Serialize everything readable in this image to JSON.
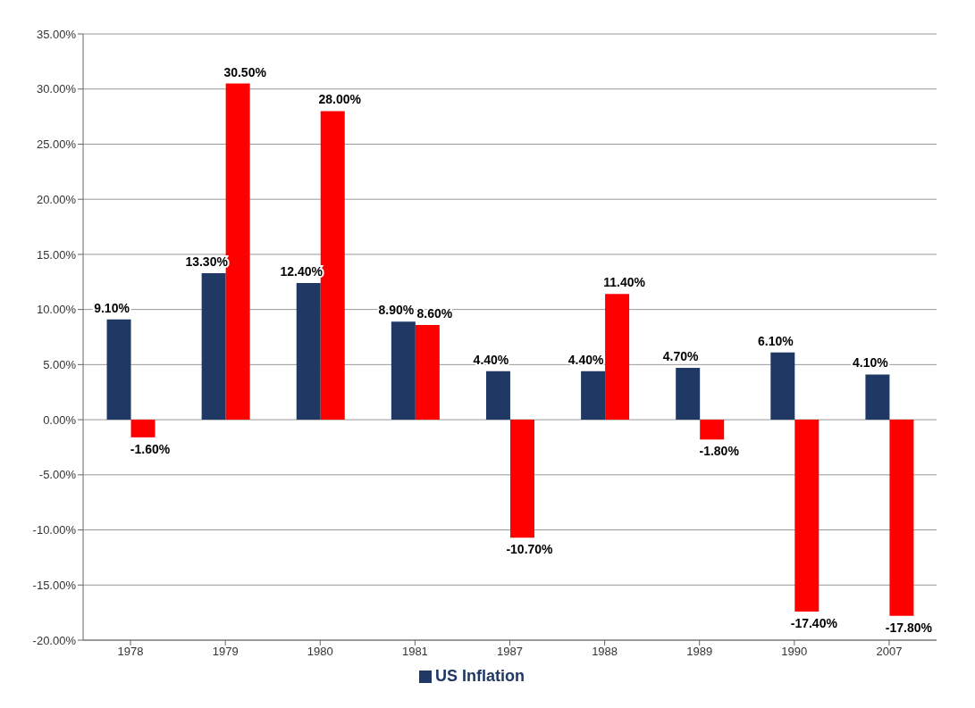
{
  "chart_data": {
    "type": "bar",
    "categories": [
      "1978",
      "1979",
      "1980",
      "1981",
      "1987",
      "1988",
      "1989",
      "1990",
      "2007"
    ],
    "series": [
      {
        "name": "US Inflation",
        "color": "#1f3864",
        "values": [
          9.1,
          13.3,
          12.4,
          8.9,
          4.4,
          4.4,
          4.7,
          6.1,
          4.1
        ],
        "value_labels": [
          "9.10%",
          "13.30%",
          "12.40%",
          "8.90%",
          "4.40%",
          "4.40%",
          "4.70%",
          "6.10%",
          "4.10%"
        ]
      },
      {
        "color": "#ff0000",
        "values": [
          -1.6,
          30.5,
          28.0,
          8.6,
          -10.7,
          11.4,
          -1.8,
          -17.4,
          -17.8
        ],
        "value_labels": [
          "-1.60%",
          "30.50%",
          "28.00%",
          "8.60%",
          "-10.70%",
          "11.40%",
          "-1.80%",
          "-17.40%",
          "-17.80%"
        ]
      }
    ],
    "ylim": [
      -20,
      35
    ],
    "yticks": [
      {
        "value": -20,
        "label": "-20.00%"
      },
      {
        "value": -15,
        "label": "-15.00%"
      },
      {
        "value": -10,
        "label": "-10.00%"
      },
      {
        "value": -5,
        "label": "-5.00%"
      },
      {
        "value": 0,
        "label": "0.00%"
      },
      {
        "value": 5,
        "label": "5.00%"
      },
      {
        "value": 10,
        "label": "10.00%"
      },
      {
        "value": 15,
        "label": "15.00%"
      },
      {
        "value": 20,
        "label": "20.00%"
      },
      {
        "value": 25,
        "label": "25.00%"
      },
      {
        "value": 30,
        "label": "30.00%"
      },
      {
        "value": 35,
        "label": "35.00%"
      }
    ],
    "grid": "y",
    "legend": "bottom"
  }
}
